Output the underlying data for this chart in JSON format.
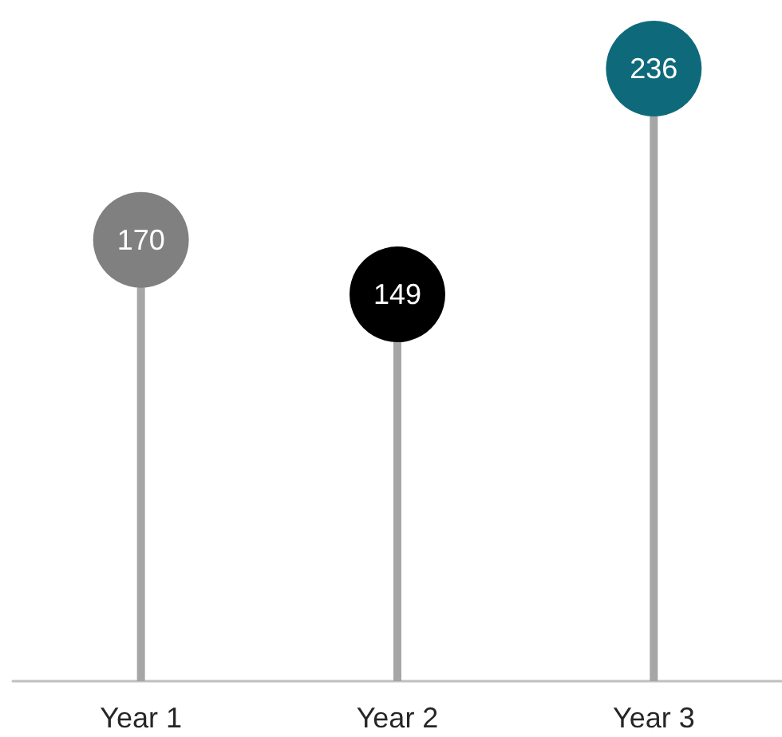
{
  "chart_data": {
    "type": "lollipop",
    "categories": [
      "Year 1",
      "Year 2",
      "Year 3"
    ],
    "values": [
      170,
      149,
      236
    ],
    "colors": [
      "#808080",
      "#000000",
      "#0e6a7a"
    ],
    "data_labels": true
  }
}
